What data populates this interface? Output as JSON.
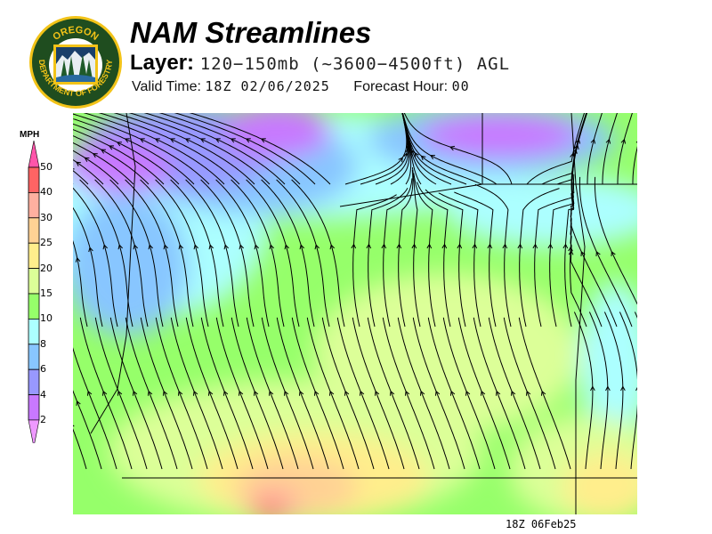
{
  "header": {
    "title": "NAM Streamlines",
    "layer_label": "Layer:",
    "layer_value": "120−150mb (~3600−4500ft) AGL",
    "valid_time_label": "Valid Time:",
    "valid_time": "18Z 02/06/2025",
    "forecast_hour_label": "Forecast Hour:",
    "forecast_hour": "00"
  },
  "logo": {
    "text_top": "OREGON",
    "text_ring": "DEPARTMENT OF FORESTRY",
    "ring_color": "#1f4d1f",
    "accent_color": "#f2c318"
  },
  "legend": {
    "unit": "MPH",
    "ticks": [
      "50",
      "40",
      "30",
      "25",
      "20",
      "15",
      "10",
      "8",
      "6",
      "4",
      "2"
    ],
    "colors": [
      "#ff6464",
      "#ffb0a0",
      "#ffd294",
      "#ffee8c",
      "#dcff98",
      "#96ff6a",
      "#acffff",
      "#88c6ff",
      "#9898ff",
      "#c878ff"
    ],
    "over_color": "#ff55aa",
    "under_color": "#ee99ff"
  },
  "map": {
    "timestamp": "18Z 06Feb25",
    "streamline_color": "#000000"
  }
}
